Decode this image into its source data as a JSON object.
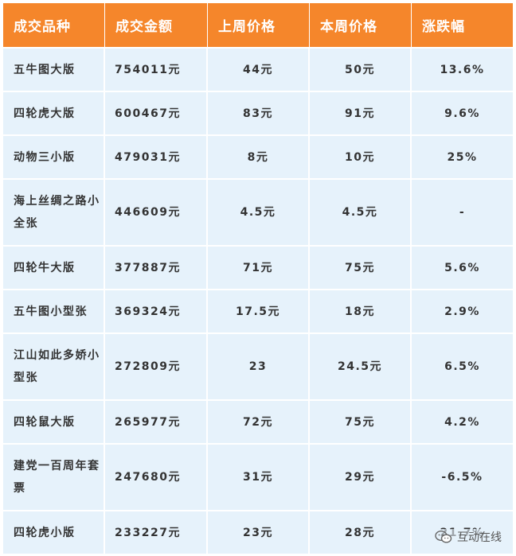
{
  "headers": [
    "成交品种",
    "成交金额",
    "上周价格",
    "本周价格",
    "涨跌幅"
  ],
  "rows": [
    {
      "name": "五牛图大版",
      "amount": "754011元",
      "last": "44元",
      "this": "50元",
      "change": "13.6%",
      "dir": "up"
    },
    {
      "name": "四轮虎大版",
      "amount": "600467元",
      "last": "83元",
      "this": "91元",
      "change": "9.6%",
      "dir": "up"
    },
    {
      "name": "动物三小版",
      "amount": "479031元",
      "last": "8元",
      "this": "10元",
      "change": "25%",
      "dir": "up"
    },
    {
      "name": "海上丝绸之路小全张",
      "amount": "446609元",
      "last": "4.5元",
      "this": "4.5元",
      "change": "-",
      "dir": "flat"
    },
    {
      "name": "四轮牛大版",
      "amount": "377887元",
      "last": "71元",
      "this": "75元",
      "change": "5.6%",
      "dir": "up"
    },
    {
      "name": "五牛图小型张",
      "amount": "369324元",
      "last": "17.5元",
      "this": "18元",
      "change": "2.9%",
      "dir": "up"
    },
    {
      "name": "江山如此多娇小型张",
      "amount": "272809元",
      "last": "23",
      "this": "24.5元",
      "change": "6.5%",
      "dir": "up"
    },
    {
      "name": "四轮鼠大版",
      "amount": "265977元",
      "last": "72元",
      "this": "75元",
      "change": "4.2%",
      "dir": "up"
    },
    {
      "name": "建党一百周年套票",
      "amount": "247680元",
      "last": "31元",
      "this": "29元",
      "change": "-6.5%",
      "dir": "down"
    },
    {
      "name": "四轮虎小版",
      "amount": "233227元",
      "last": "23元",
      "this": "28元",
      "change": "21.7%",
      "dir": "up"
    }
  ],
  "watermark": {
    "text": "互动在线",
    "icon": "wechat-icon"
  },
  "colors": {
    "header_bg": "#f5862b",
    "row_bg": "#e6f2fb",
    "up": "#e02a2a",
    "down": "#7cc04b"
  }
}
